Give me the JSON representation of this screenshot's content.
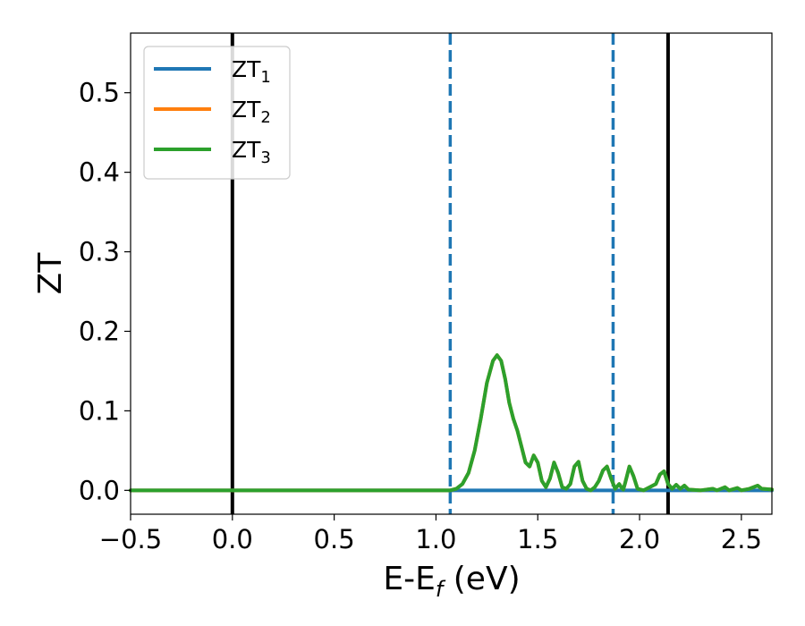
{
  "chart_data": {
    "type": "line",
    "title": "",
    "xlabel": {
      "main": "E-E",
      "sub": "f",
      "unit": " (eV)"
    },
    "ylabel": "ZT",
    "xlim": [
      -0.5,
      2.65
    ],
    "ylim": [
      -0.03,
      0.575
    ],
    "xticks": [
      -0.5,
      0.0,
      0.5,
      1.0,
      1.5,
      2.0,
      2.5
    ],
    "xtick_labels": [
      "−0.5",
      "0.0",
      "0.5",
      "1.0",
      "1.5",
      "2.0",
      "2.5"
    ],
    "yticks": [
      0.0,
      0.1,
      0.2,
      0.3,
      0.4,
      0.5
    ],
    "ytick_labels": [
      "0.0",
      "0.1",
      "0.2",
      "0.3",
      "0.4",
      "0.5"
    ],
    "grid": false,
    "legend_position": "top-left",
    "series": [
      {
        "name": "ZT",
        "sub": "1",
        "color": "#1f77b4",
        "points": [
          [
            -0.5,
            0.0
          ],
          [
            2.65,
            0.0
          ]
        ]
      },
      {
        "name": "ZT",
        "sub": "2",
        "color": "#ff7f0e",
        "points": [
          [
            -0.5,
            0.0
          ],
          [
            1.0,
            0.0
          ],
          [
            1.07,
            0.0
          ],
          [
            1.1,
            0.002
          ],
          [
            1.13,
            0.008
          ],
          [
            1.16,
            0.022
          ],
          [
            1.19,
            0.05
          ],
          [
            1.22,
            0.09
          ],
          [
            1.25,
            0.135
          ],
          [
            1.28,
            0.163
          ],
          [
            1.3,
            0.17
          ],
          [
            1.32,
            0.163
          ],
          [
            1.34,
            0.14
          ],
          [
            1.36,
            0.11
          ],
          [
            1.38,
            0.09
          ],
          [
            1.4,
            0.075
          ],
          [
            1.42,
            0.055
          ],
          [
            1.44,
            0.035
          ],
          [
            1.46,
            0.03
          ],
          [
            1.48,
            0.044
          ],
          [
            1.5,
            0.035
          ],
          [
            1.52,
            0.012
          ],
          [
            1.54,
            0.004
          ],
          [
            1.56,
            0.015
          ],
          [
            1.58,
            0.035
          ],
          [
            1.6,
            0.022
          ],
          [
            1.62,
            0.004
          ],
          [
            1.64,
            0.002
          ],
          [
            1.66,
            0.008
          ],
          [
            1.68,
            0.03
          ],
          [
            1.7,
            0.036
          ],
          [
            1.72,
            0.012
          ],
          [
            1.74,
            0.002
          ],
          [
            1.76,
            0.0
          ],
          [
            1.78,
            0.004
          ],
          [
            1.8,
            0.012
          ],
          [
            1.82,
            0.025
          ],
          [
            1.84,
            0.03
          ],
          [
            1.86,
            0.015
          ],
          [
            1.88,
            0.002
          ],
          [
            1.89,
            0.005
          ],
          [
            1.9,
            0.008
          ],
          [
            1.91,
            0.004
          ],
          [
            1.92,
            0.001
          ],
          [
            1.93,
            0.01
          ],
          [
            1.95,
            0.03
          ],
          [
            1.97,
            0.018
          ],
          [
            1.99,
            0.002
          ],
          [
            2.02,
            0.0
          ],
          [
            2.05,
            0.004
          ],
          [
            2.08,
            0.008
          ],
          [
            2.1,
            0.02
          ],
          [
            2.12,
            0.024
          ],
          [
            2.14,
            0.008
          ],
          [
            2.16,
            0.002
          ],
          [
            2.18,
            0.007
          ],
          [
            2.2,
            0.002
          ],
          [
            2.22,
            0.006
          ],
          [
            2.24,
            0.001
          ],
          [
            2.3,
            0.0
          ],
          [
            2.36,
            0.002
          ],
          [
            2.38,
            0.0
          ],
          [
            2.42,
            0.004
          ],
          [
            2.44,
            0.0
          ],
          [
            2.48,
            0.003
          ],
          [
            2.5,
            0.0
          ],
          [
            2.54,
            0.002
          ],
          [
            2.58,
            0.006
          ],
          [
            2.6,
            0.002
          ],
          [
            2.65,
            0.001
          ]
        ]
      },
      {
        "name": "ZT",
        "sub": "3",
        "color": "#2ca02c",
        "points": [
          [
            -0.5,
            0.0
          ],
          [
            1.0,
            0.0
          ],
          [
            1.07,
            0.0
          ],
          [
            1.1,
            0.002
          ],
          [
            1.13,
            0.008
          ],
          [
            1.16,
            0.022
          ],
          [
            1.19,
            0.05
          ],
          [
            1.22,
            0.09
          ],
          [
            1.25,
            0.135
          ],
          [
            1.28,
            0.163
          ],
          [
            1.3,
            0.17
          ],
          [
            1.32,
            0.163
          ],
          [
            1.34,
            0.14
          ],
          [
            1.36,
            0.11
          ],
          [
            1.38,
            0.09
          ],
          [
            1.4,
            0.075
          ],
          [
            1.42,
            0.055
          ],
          [
            1.44,
            0.035
          ],
          [
            1.46,
            0.03
          ],
          [
            1.48,
            0.044
          ],
          [
            1.5,
            0.035
          ],
          [
            1.52,
            0.012
          ],
          [
            1.54,
            0.004
          ],
          [
            1.56,
            0.015
          ],
          [
            1.58,
            0.035
          ],
          [
            1.6,
            0.022
          ],
          [
            1.62,
            0.004
          ],
          [
            1.64,
            0.002
          ],
          [
            1.66,
            0.008
          ],
          [
            1.68,
            0.03
          ],
          [
            1.7,
            0.036
          ],
          [
            1.72,
            0.012
          ],
          [
            1.74,
            0.002
          ],
          [
            1.76,
            0.0
          ],
          [
            1.78,
            0.004
          ],
          [
            1.8,
            0.012
          ],
          [
            1.82,
            0.025
          ],
          [
            1.84,
            0.03
          ],
          [
            1.86,
            0.015
          ],
          [
            1.88,
            0.002
          ],
          [
            1.89,
            0.005
          ],
          [
            1.9,
            0.008
          ],
          [
            1.91,
            0.004
          ],
          [
            1.92,
            0.001
          ],
          [
            1.93,
            0.01
          ],
          [
            1.95,
            0.03
          ],
          [
            1.97,
            0.018
          ],
          [
            1.99,
            0.002
          ],
          [
            2.02,
            0.0
          ],
          [
            2.05,
            0.004
          ],
          [
            2.08,
            0.008
          ],
          [
            2.1,
            0.02
          ],
          [
            2.12,
            0.024
          ],
          [
            2.14,
            0.008
          ],
          [
            2.16,
            0.002
          ],
          [
            2.18,
            0.007
          ],
          [
            2.2,
            0.002
          ],
          [
            2.22,
            0.006
          ],
          [
            2.24,
            0.001
          ],
          [
            2.3,
            0.0
          ],
          [
            2.36,
            0.002
          ],
          [
            2.38,
            0.0
          ],
          [
            2.42,
            0.004
          ],
          [
            2.44,
            0.0
          ],
          [
            2.48,
            0.003
          ],
          [
            2.5,
            0.0
          ],
          [
            2.54,
            0.002
          ],
          [
            2.58,
            0.006
          ],
          [
            2.6,
            0.002
          ],
          [
            2.65,
            0.001
          ]
        ]
      }
    ],
    "reference_lines": [
      {
        "x": 0.0,
        "style": "solid",
        "color": "#000000"
      },
      {
        "x": 2.14,
        "style": "solid",
        "color": "#000000"
      },
      {
        "x": 1.07,
        "style": "dashed",
        "color": "#1f77b4"
      },
      {
        "x": 1.87,
        "style": "dashed",
        "color": "#1f77b4"
      }
    ]
  }
}
